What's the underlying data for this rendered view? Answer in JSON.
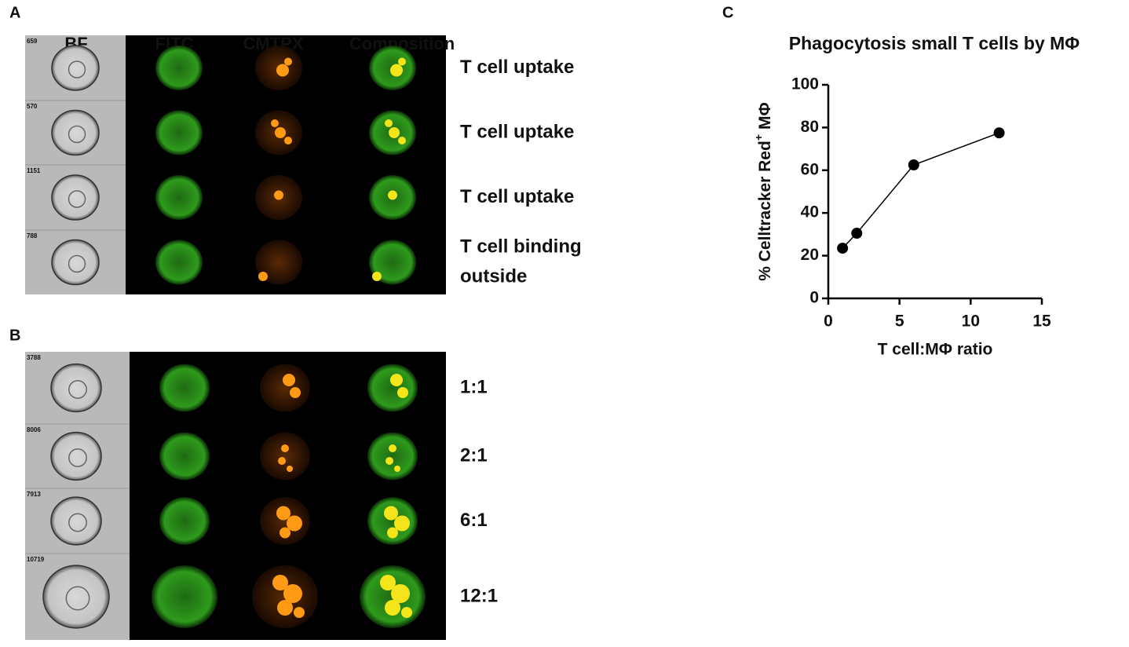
{
  "panel_labels": [
    "A",
    "B",
    "C"
  ],
  "panel_a": {
    "columns": [
      "BF",
      "FITC",
      "CMTPX",
      "Composition"
    ],
    "rows": [
      {
        "id": "659",
        "label": [
          "T cell uptake"
        ]
      },
      {
        "id": "570",
        "label": [
          "T cell uptake"
        ]
      },
      {
        "id": "1151",
        "label": [
          "T cell uptake"
        ]
      },
      {
        "id": "788",
        "label": [
          "T cell binding",
          "outside"
        ]
      }
    ]
  },
  "panel_b": {
    "rows": [
      {
        "id": "3788",
        "label": [
          "1:1"
        ]
      },
      {
        "id": "8006",
        "label": [
          "2:1"
        ]
      },
      {
        "id": "7913",
        "label": [
          "6:1"
        ]
      },
      {
        "id": "10719",
        "label": [
          "12:1"
        ]
      }
    ]
  },
  "chart_data": {
    "type": "line",
    "title": "Phagocytosis small T cells by MΦ",
    "x_label": "T cell:MΦ ratio",
    "y_label": {
      "text": "% Celltracker Red",
      "superscript": "+",
      "suffix": "MΦ"
    },
    "x": [
      1,
      2,
      6,
      12
    ],
    "values": [
      23.5,
      30.5,
      62.5,
      77.5
    ],
    "color": "#000000",
    "xlim": [
      0,
      15
    ],
    "xticks": [
      0,
      5,
      10,
      15
    ],
    "ylim": [
      0,
      100
    ],
    "yticks": [
      0,
      20,
      40,
      60,
      80,
      100
    ]
  }
}
